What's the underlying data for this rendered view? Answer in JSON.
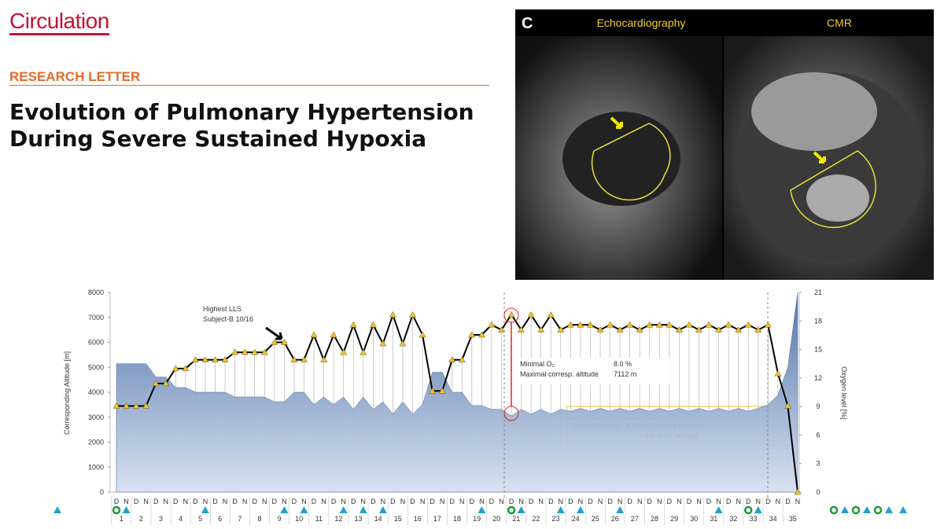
{
  "header": {
    "journal": "Circulation",
    "section": "RESEARCH LETTER",
    "title_lines": [
      "Evolution of Pulmonary Hypertension",
      "During Severe Sustained Hypoxia"
    ]
  },
  "imaging": {
    "panel": "C",
    "left_label": "Echocardiography",
    "right_label": "CMR"
  },
  "chart_data": {
    "type": "line",
    "ylabel": "Corresponding Altitude [m]",
    "y2label": "Oxygen level [%]",
    "categories": [
      "D",
      "N",
      "D",
      "N",
      "D",
      "N",
      "D",
      "N",
      "D",
      "N",
      "D",
      "N",
      "D",
      "N",
      "D",
      "N",
      "D",
      "N",
      "D",
      "N",
      "D",
      "N",
      "D",
      "N",
      "D",
      "N",
      "D",
      "N",
      "D",
      "N",
      "D",
      "N",
      "D",
      "N",
      "D",
      "N",
      "D",
      "N",
      "D",
      "N",
      "D",
      "N",
      "D",
      "N",
      "D",
      "N",
      "D",
      "N",
      "D",
      "N",
      "D",
      "N",
      "D",
      "N",
      "D",
      "N",
      "D",
      "N",
      "D",
      "N",
      "D",
      "N",
      "D",
      "N",
      "D",
      "N",
      "D",
      "N",
      "D",
      "N"
    ],
    "days": [
      1,
      2,
      3,
      4,
      5,
      6,
      7,
      8,
      9,
      10,
      11,
      12,
      13,
      14,
      15,
      16,
      17,
      18,
      19,
      20,
      21,
      22,
      23,
      24,
      25,
      26,
      27,
      28,
      29,
      30,
      31,
      32,
      33,
      34,
      35
    ],
    "ylim": [
      0,
      8000
    ],
    "yticks": [
      0,
      1000,
      2000,
      3000,
      4000,
      5000,
      6000,
      7000,
      8000
    ],
    "y2lim": [
      0,
      21
    ],
    "y2ticks": [
      0,
      3,
      6,
      9,
      12,
      15,
      18,
      21
    ],
    "series": [
      {
        "color": "#000000",
        "marker_color": "#f2c12e",
        "values": [
          3450,
          3450,
          3450,
          3450,
          4350,
          4350,
          4950,
          4950,
          5300,
          5300,
          5300,
          5300,
          5600,
          5600,
          5600,
          5600,
          6000,
          6000,
          5300,
          5300,
          6300,
          5300,
          6300,
          5600,
          6700,
          5600,
          6700,
          5950,
          7100,
          5950,
          7100,
          6300,
          4050,
          4050,
          5300,
          5300,
          6300,
          6300,
          6700,
          6500,
          7112,
          6500,
          7100,
          6500,
          7100,
          6500,
          6700,
          6700,
          6700,
          6500,
          6700,
          6500,
          6700,
          6500,
          6700,
          6700,
          6700,
          6500,
          6700,
          6500,
          6700,
          6500,
          6700,
          6500,
          6700,
          6500,
          6700,
          4750,
          3450,
          0
        ]
      },
      {
        "axis": "y2",
        "kind": "area",
        "color": "#4a6fa5",
        "values": [
          13.5,
          13.5,
          13.5,
          13.5,
          12.1,
          12.1,
          11.0,
          11.0,
          10.5,
          10.5,
          10.5,
          10.5,
          10.0,
          10.0,
          10.0,
          10.0,
          9.5,
          9.5,
          10.5,
          10.5,
          9.2,
          10.0,
          9.2,
          10.0,
          8.7,
          10.0,
          8.7,
          9.5,
          8.2,
          9.5,
          8.2,
          9.2,
          12.6,
          12.6,
          10.5,
          10.5,
          9.1,
          9.1,
          8.7,
          8.7,
          8.0,
          8.7,
          8.2,
          8.7,
          8.2,
          8.7,
          8.5,
          8.8,
          8.5,
          8.8,
          8.5,
          8.8,
          8.5,
          8.8,
          8.5,
          8.8,
          8.5,
          8.8,
          8.5,
          8.8,
          8.5,
          8.8,
          8.5,
          8.8,
          8.5,
          8.8,
          9.2,
          10.2,
          13.1,
          21
        ]
      }
    ],
    "annotations": [
      "Highest LLS",
      "Subject-B 10/16",
      "Minimal O₂",
      "8.0 %",
      "Maximal corresp. altitude",
      "7112 m",
      "Stable Hypoxia  - 8.5 % O₂ during daytime",
      "- 8.8 % O₂ at night"
    ]
  }
}
